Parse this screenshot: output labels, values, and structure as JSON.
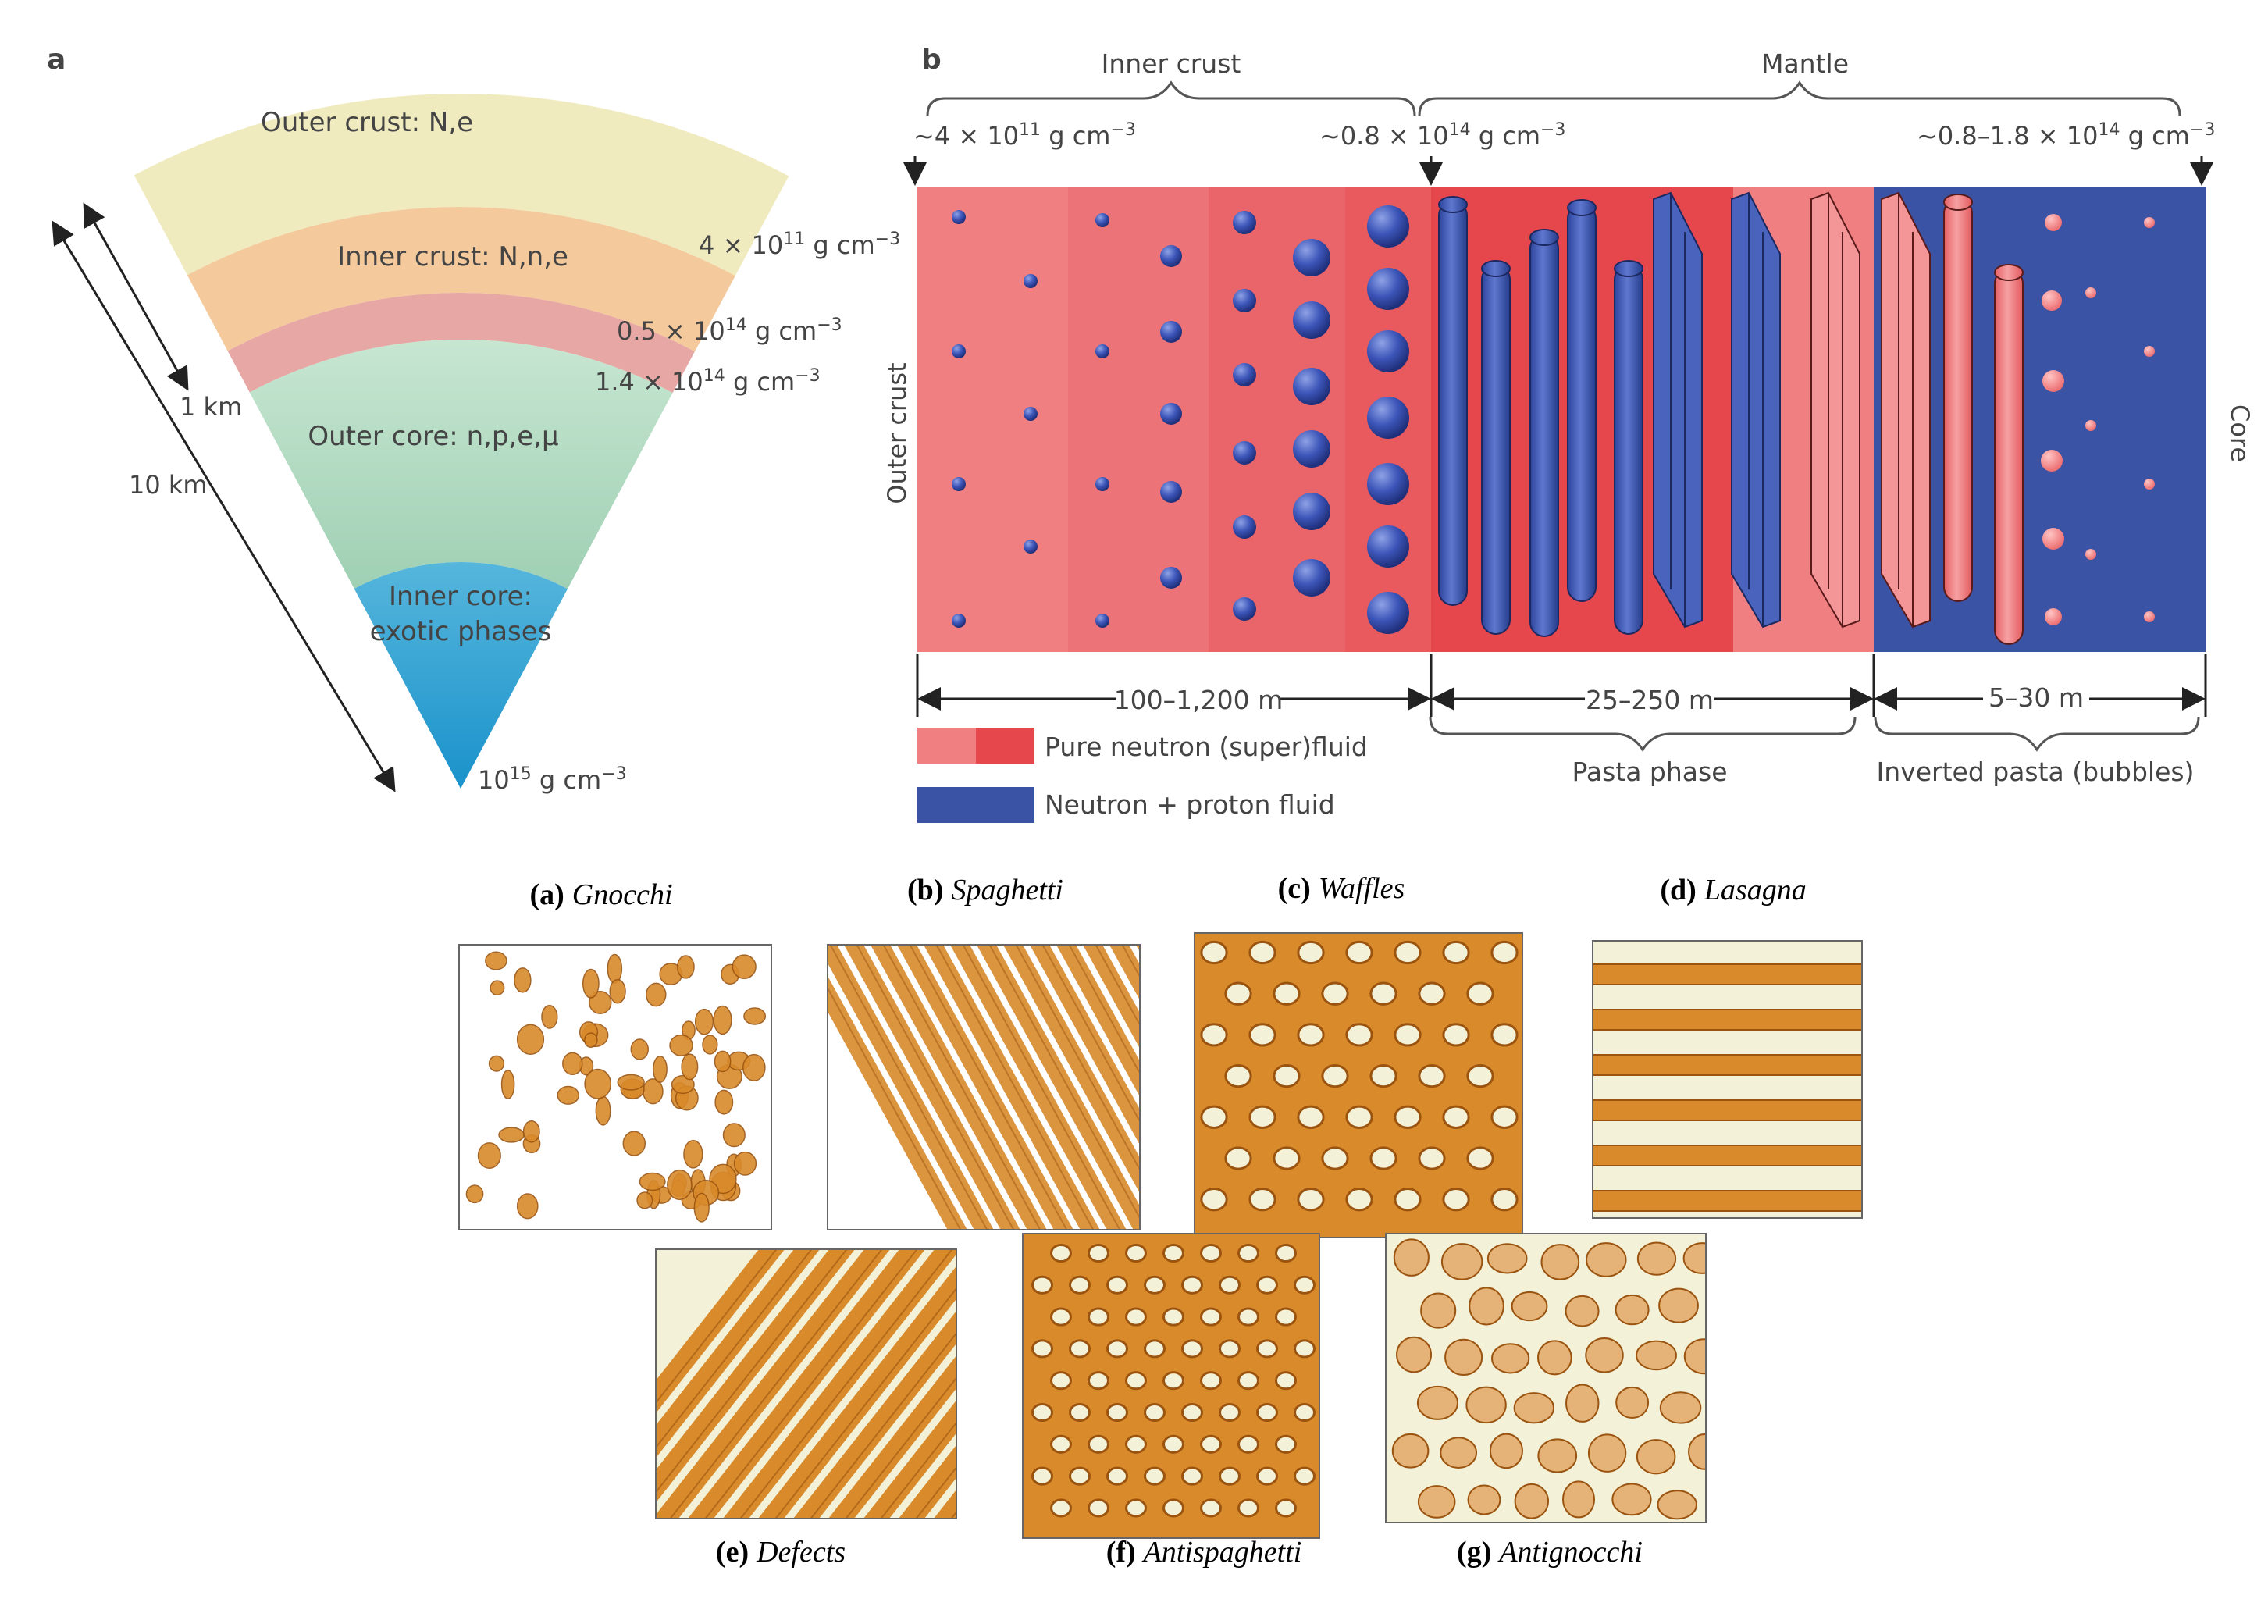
{
  "panel_a": {
    "letter": "a",
    "layers": {
      "outer_crust": "Outer crust: N,e",
      "inner_crust": "Inner crust: N,n,e",
      "outer_core": "Outer core: n,p,e,μ",
      "inner_core_1": "Inner core:",
      "inner_core_2": "exotic phases"
    },
    "densities": [
      {
        "mant": "4 × 10",
        "exp": "11",
        "unit": " g cm",
        "uexp": "−3"
      },
      {
        "mant": "0.5 × 10",
        "exp": "14",
        "unit": " g cm",
        "uexp": "−3"
      },
      {
        "mant": "1.4 × 10",
        "exp": "14",
        "unit": " g cm",
        "uexp": "−3"
      },
      {
        "mant": "10",
        "exp": "15",
        "unit": " g cm",
        "uexp": "−3"
      }
    ],
    "scale_1": "1 km",
    "scale_10": "10 km",
    "colors": {
      "outer_crust": "#f0ebbf",
      "inner_crust": "#f4c99c",
      "pink_band": "#e7a7a4",
      "outer_core": "#b6dcc3",
      "inner_core": "#2a9ed1"
    }
  },
  "panel_b": {
    "letter": "b",
    "brace_inner_crust": "Inner crust",
    "brace_mantle": "Mantle",
    "density_left": {
      "mant": "~4 × 10",
      "exp": "11",
      "unit": " g cm",
      "uexp": "−3"
    },
    "density_mid": {
      "mant": "~0.8 × 10",
      "exp": "14",
      "unit": " g cm",
      "uexp": "−3"
    },
    "density_right": {
      "mant": "~0.8–1.8 × 10",
      "exp": "14",
      "unit": " g cm",
      "uexp": "−3"
    },
    "side_left": "Outer crust",
    "side_right": "Core",
    "range_1": "100–1,200 m",
    "range_2": "25–250 m",
    "range_3": "5–30 m",
    "brace_pasta": "Pasta phase",
    "brace_inverted": "Inverted pasta (bubbles)",
    "legend": [
      {
        "label": "Pure neutron (super)fluid",
        "color": "#e8676b"
      },
      {
        "label": "Neutron + proton fluid",
        "color": "#3a53a4"
      }
    ],
    "colors": {
      "neutron": "#ef7f81",
      "neutron_dark": "#e5474d",
      "proton": "#3a53a4"
    }
  },
  "pasta_panels": [
    {
      "tag": "(a)",
      "name": "Gnocchi"
    },
    {
      "tag": "(b)",
      "name": "Spaghetti"
    },
    {
      "tag": "(c)",
      "name": "Waffles"
    },
    {
      "tag": "(d)",
      "name": "Lasagna"
    },
    {
      "tag": "(e)",
      "name": "Defects"
    },
    {
      "tag": "(f)",
      "name": "Antispaghetti"
    },
    {
      "tag": "(g)",
      "name": "Antignocchi"
    }
  ],
  "pasta_colors": {
    "cream": "#f3f1d8",
    "orange": "#d98a2b",
    "dark": "#9a5410"
  }
}
